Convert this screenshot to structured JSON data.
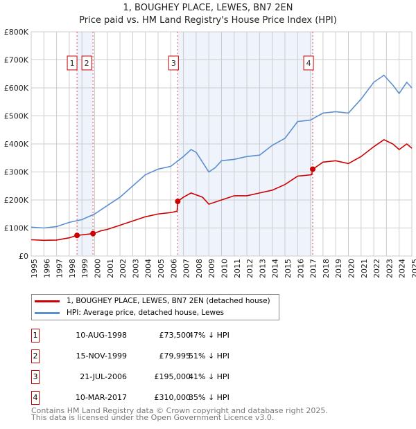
{
  "title": "1, BOUGHEY PLACE, LEWES, BN7 2EN",
  "subtitle": "Price paid vs. HM Land Registry's House Price Index (HPI)",
  "chart_data": {
    "type": "line",
    "title": "1, BOUGHEY PLACE, LEWES, BN7 2EN",
    "xlim": [
      1995,
      2025
    ],
    "ylim": [
      0,
      800000
    ],
    "y_ticks": [
      {
        "v": 0,
        "label": "£0"
      },
      {
        "v": 100000,
        "label": "£100K"
      },
      {
        "v": 200000,
        "label": "£200K"
      },
      {
        "v": 300000,
        "label": "£300K"
      },
      {
        "v": 400000,
        "label": "£400K"
      },
      {
        "v": 500000,
        "label": "£500K"
      },
      {
        "v": 600000,
        "label": "£600K"
      },
      {
        "v": 700000,
        "label": "£700K"
      },
      {
        "v": 800000,
        "label": "£800K"
      }
    ],
    "x_ticks": [
      "1995",
      "1996",
      "1997",
      "1998",
      "1999",
      "2000",
      "2001",
      "2002",
      "2003",
      "2004",
      "2005",
      "2006",
      "2007",
      "2008",
      "2009",
      "2010",
      "2011",
      "2012",
      "2013",
      "2014",
      "2015",
      "2016",
      "2017",
      "2018",
      "2019",
      "2020",
      "2021",
      "2022",
      "2023",
      "2024",
      "2025"
    ],
    "series": [
      {
        "name": "1, BOUGHEY PLACE, LEWES, BN7 2EN (detached house)",
        "color": "#cc0000",
        "x": [
          1995,
          1996,
          1997,
          1998,
          1998.6,
          1999.9,
          2000.5,
          2001,
          2002,
          2003,
          2004,
          2005,
          2006,
          2006.5,
          2006.55,
          2007,
          2007.6,
          2008.5,
          2009,
          2010,
          2011,
          2012,
          2013,
          2014,
          2015,
          2016,
          2017.1,
          2017.2,
          2018,
          2019,
          2020,
          2021,
          2022,
          2022.8,
          2023.5,
          2024,
          2024.6,
          2025
        ],
        "y": [
          58000,
          56000,
          57000,
          65000,
          73500,
          79995,
          90000,
          95000,
          110000,
          125000,
          140000,
          150000,
          155000,
          160000,
          195000,
          210000,
          225000,
          210000,
          185000,
          200000,
          215000,
          215000,
          225000,
          235000,
          255000,
          285000,
          290000,
          310000,
          335000,
          340000,
          330000,
          355000,
          390000,
          415000,
          400000,
          380000,
          400000,
          385000
        ]
      },
      {
        "name": "HPI: Average price, detached house, Lewes",
        "color": "#5b8fd0",
        "x": [
          1995,
          1996,
          1997,
          1998,
          1999,
          2000,
          2001,
          2002,
          2003,
          2004,
          2005,
          2006,
          2007,
          2007.6,
          2008,
          2009,
          2009.5,
          2010,
          2011,
          2012,
          2013,
          2014,
          2015,
          2016,
          2017,
          2018,
          2019,
          2020,
          2021,
          2022,
          2022.8,
          2023.5,
          2024,
          2024.6,
          2025
        ],
        "y": [
          103000,
          100000,
          105000,
          120000,
          130000,
          150000,
          180000,
          210000,
          250000,
          290000,
          310000,
          320000,
          355000,
          380000,
          370000,
          300000,
          315000,
          340000,
          345000,
          355000,
          360000,
          395000,
          420000,
          480000,
          485000,
          510000,
          515000,
          510000,
          560000,
          620000,
          645000,
          610000,
          580000,
          620000,
          600000
        ]
      }
    ],
    "sales": [
      {
        "id": "1",
        "x": 1998.61,
        "y": 73500,
        "date": "10-AUG-1998",
        "price": "£73,500",
        "hpi": "47% ↓ HPI"
      },
      {
        "id": "2",
        "x": 1999.87,
        "y": 79995,
        "date": "15-NOV-1999",
        "price": "£79,995",
        "hpi": "51% ↓ HPI"
      },
      {
        "id": "3",
        "x": 2006.55,
        "y": 195000,
        "date": "21-JUL-2006",
        "price": "£195,000",
        "hpi": "41% ↓ HPI"
      },
      {
        "id": "4",
        "x": 2017.19,
        "y": 310000,
        "date": "10-MAR-2017",
        "price": "£310,000",
        "hpi": "35% ↓ HPI"
      }
    ],
    "legend_placement": "below"
  },
  "footer": [
    "Contains HM Land Registry data © Crown copyright and database right 2025.",
    "This data is licensed under the Open Government Licence v3.0."
  ]
}
